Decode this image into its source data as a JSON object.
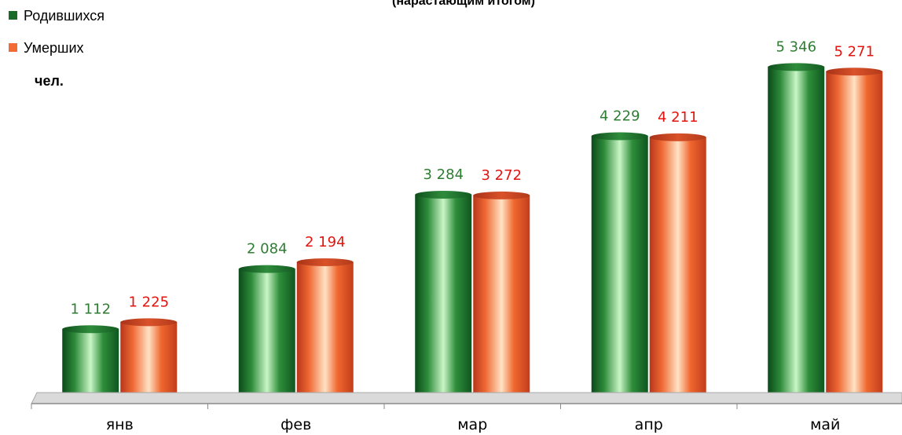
{
  "chart_data": {
    "type": "bar",
    "subtitle": "(нарастающим итогом)",
    "unit_label": "чел.",
    "categories": [
      "янв",
      "фев",
      "мар",
      "апр",
      "май"
    ],
    "series": [
      {
        "name": "Родившихся",
        "values": [
          1112,
          2084,
          3284,
          4229,
          5346
        ],
        "labels": [
          "1 112",
          "2 084",
          "3 284",
          "4 229",
          "5 346"
        ],
        "color": "#2e8b3a",
        "label_color": "#2e7d32"
      },
      {
        "name": "Умерших",
        "values": [
          1225,
          2194,
          3272,
          4211,
          5271
        ],
        "labels": [
          "1 225",
          "2 194",
          "3 272",
          "4 211",
          "5 271"
        ],
        "color": "#f26b35",
        "label_color": "#e3140f"
      }
    ],
    "ylim": [
      0,
      6000
    ],
    "legend_position": "top-left",
    "grid": false
  }
}
